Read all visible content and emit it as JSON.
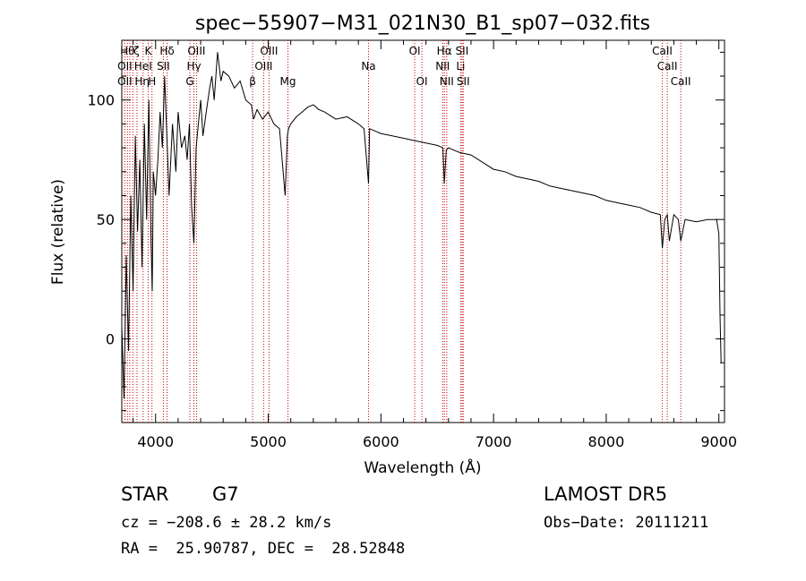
{
  "chart_data": {
    "type": "line",
    "title": "spec−55907−M31_021N30_B1_sp07−032.fits",
    "xlabel": "Wavelength (Å)",
    "ylabel": "Flux (relative)",
    "xlim": [
      3700,
      9050
    ],
    "ylim": [
      -35,
      125
    ],
    "xticks": [
      4000,
      5000,
      6000,
      7000,
      8000,
      9000
    ],
    "yticks": [
      0,
      50,
      100
    ],
    "grid": false,
    "series": [
      {
        "x": [
          3700,
          3720,
          3740,
          3760,
          3780,
          3800,
          3820,
          3840,
          3860,
          3880,
          3900,
          3920,
          3940,
          3960,
          3970,
          3980,
          4000,
          4020,
          4040,
          4060,
          4080,
          4100,
          4120,
          4150,
          4180,
          4200,
          4230,
          4260,
          4280,
          4300,
          4320,
          4340,
          4360,
          4380,
          4400,
          4420,
          4450,
          4480,
          4500,
          4520,
          4550,
          4580,
          4600,
          4650,
          4700,
          4750,
          4800,
          4850,
          4870,
          4900,
          4950,
          5000,
          5050,
          5100,
          5150,
          5170,
          5180,
          5200,
          5250,
          5300,
          5350,
          5400,
          5450,
          5500,
          5600,
          5700,
          5800,
          5850,
          5890,
          5900,
          5950,
          6000,
          6100,
          6200,
          6300,
          6400,
          6500,
          6550,
          6563,
          6580,
          6600,
          6650,
          6700,
          6800,
          6900,
          7000,
          7100,
          7200,
          7300,
          7400,
          7500,
          7600,
          7700,
          7800,
          7900,
          8000,
          8100,
          8200,
          8300,
          8400,
          8480,
          8498,
          8520,
          8542,
          8560,
          8600,
          8640,
          8662,
          8700,
          8800,
          8900,
          8980,
          9000,
          9010,
          9020
        ],
        "values": [
          5,
          -25,
          35,
          -5,
          60,
          20,
          85,
          45,
          75,
          30,
          90,
          50,
          100,
          40,
          20,
          70,
          60,
          75,
          95,
          80,
          110,
          85,
          60,
          90,
          70,
          95,
          80,
          85,
          75,
          90,
          55,
          40,
          80,
          90,
          100,
          85,
          95,
          105,
          110,
          100,
          120,
          108,
          112,
          110,
          105,
          108,
          100,
          98,
          92,
          96,
          92,
          95,
          90,
          88,
          60,
          85,
          88,
          90,
          93,
          95,
          97,
          98,
          96,
          95,
          92,
          93,
          90,
          88,
          65,
          88,
          87,
          86,
          85,
          84,
          83,
          82,
          81,
          80,
          65,
          79,
          80,
          79,
          78,
          77,
          74,
          71,
          70,
          68,
          67,
          66,
          64,
          63,
          62,
          61,
          60,
          58,
          57,
          56,
          55,
          53,
          52,
          38,
          50,
          52,
          41,
          52,
          50,
          41,
          50,
          49,
          50,
          50,
          44,
          10,
          -10
        ]
      }
    ],
    "line_labels": [
      {
        "x": 3750,
        "text": "Hθ",
        "row": 0
      },
      {
        "x": 3830,
        "text": "ζ",
        "row": 0
      },
      {
        "x": 3934,
        "text": "K",
        "row": 0
      },
      {
        "x": 4102,
        "text": "Hδ",
        "row": 0
      },
      {
        "x": 4363,
        "text": "OIII",
        "row": 0
      },
      {
        "x": 5007,
        "text": "OIII",
        "row": 0
      },
      {
        "x": 6300,
        "text": "OI",
        "row": 0
      },
      {
        "x": 6563,
        "text": "Hα",
        "row": 0
      },
      {
        "x": 6720,
        "text": "SII",
        "row": 0
      },
      {
        "x": 8498,
        "text": "CaII",
        "row": 0
      },
      {
        "x": 3727,
        "text": "OII",
        "row": 1
      },
      {
        "x": 3889,
        "text": "HeI",
        "row": 1
      },
      {
        "x": 4069,
        "text": "SII",
        "row": 1
      },
      {
        "x": 4340,
        "text": "Hγ",
        "row": 1
      },
      {
        "x": 4959,
        "text": "OIII",
        "row": 1
      },
      {
        "x": 5890,
        "text": "Na",
        "row": 1
      },
      {
        "x": 6548,
        "text": "NII",
        "row": 1
      },
      {
        "x": 6708,
        "text": "Li",
        "row": 1
      },
      {
        "x": 8542,
        "text": "CaII",
        "row": 1
      },
      {
        "x": 3727,
        "text": "OII",
        "row": 2
      },
      {
        "x": 3880,
        "text": "Hη",
        "row": 2
      },
      {
        "x": 3968,
        "text": "H",
        "row": 2
      },
      {
        "x": 4304,
        "text": "G",
        "row": 2
      },
      {
        "x": 4861,
        "text": "β",
        "row": 2
      },
      {
        "x": 5175,
        "text": "Mg",
        "row": 2
      },
      {
        "x": 6364,
        "text": "OI",
        "row": 2
      },
      {
        "x": 6584,
        "text": "NII",
        "row": 2
      },
      {
        "x": 6731,
        "text": "SII",
        "row": 2
      },
      {
        "x": 8662,
        "text": "CaII",
        "row": 2
      }
    ],
    "line_markers": [
      3727,
      3750,
      3771,
      3798,
      3835,
      3889,
      3934,
      3968,
      4069,
      4102,
      4304,
      4340,
      4363,
      4861,
      4959,
      5007,
      5175,
      5890,
      6300,
      6364,
      6548,
      6563,
      6584,
      6708,
      6720,
      6731,
      8498,
      8542,
      8662
    ]
  },
  "info": {
    "class": "STAR",
    "subclass": "G7",
    "survey": "LAMOST DR5",
    "cz": "cz = −208.6 ± 28.2 km/s",
    "obs_date": "Obs−Date: 20111211",
    "radec": "RA =  25.90787, DEC =  28.52848"
  }
}
